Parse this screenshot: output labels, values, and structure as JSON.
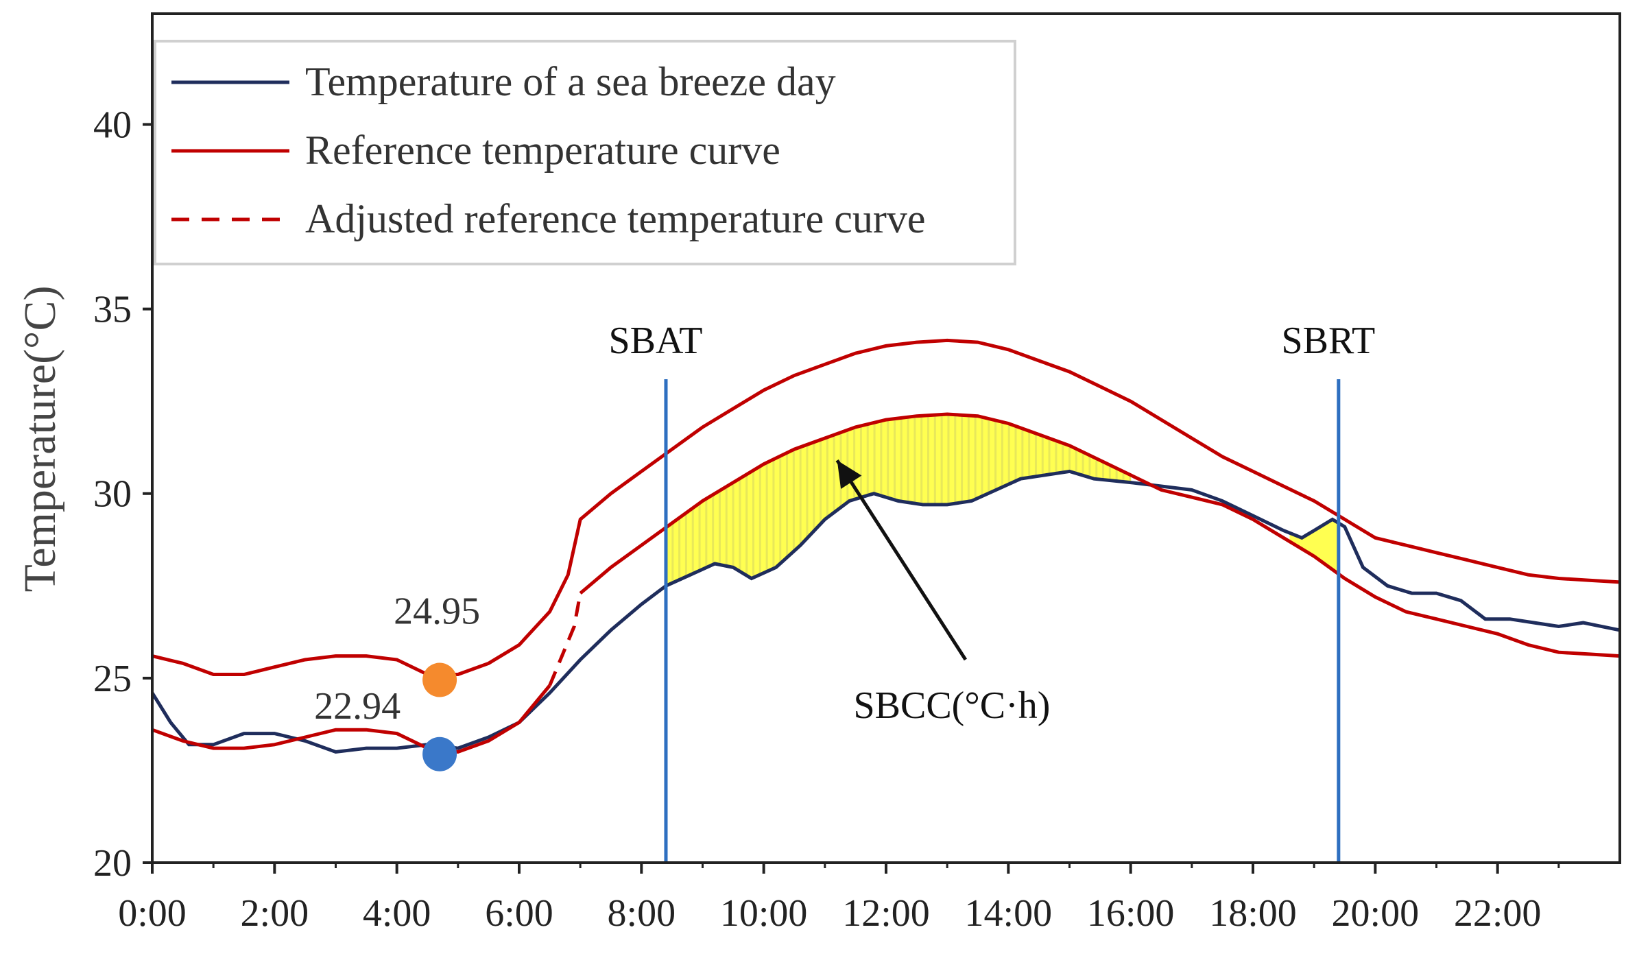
{
  "chart_data": {
    "type": "line",
    "title": "",
    "xlabel": "",
    "ylabel": "Temperature(°C)",
    "xlim": [
      0,
      24
    ],
    "ylim": [
      20,
      43
    ],
    "x_ticks": [
      "0:00",
      "2:00",
      "4:00",
      "6:00",
      "8:00",
      "10:00",
      "12:00",
      "14:00",
      "16:00",
      "18:00",
      "20:00",
      "22:00"
    ],
    "y_ticks": [
      "20",
      "25",
      "30",
      "35",
      "40"
    ],
    "legend": [
      {
        "label": "Temperature of a sea breeze day",
        "color": "#1f2d5c",
        "style": "solid"
      },
      {
        "label": "Reference temperature curve",
        "color": "#c00000",
        "style": "solid"
      },
      {
        "label": "Adjusted reference temperature curve",
        "color": "#c00000",
        "style": "dashed"
      }
    ],
    "series": [
      {
        "name": "Temperature of a sea breeze day",
        "color": "#1f2d5c",
        "points": [
          [
            0,
            24.6
          ],
          [
            0.3,
            23.8
          ],
          [
            0.6,
            23.2
          ],
          [
            1.0,
            23.2
          ],
          [
            1.5,
            23.5
          ],
          [
            2.0,
            23.5
          ],
          [
            2.5,
            23.3
          ],
          [
            3.0,
            23.0
          ],
          [
            3.5,
            23.1
          ],
          [
            4.0,
            23.1
          ],
          [
            4.5,
            23.2
          ],
          [
            5.0,
            23.1
          ],
          [
            5.5,
            23.4
          ],
          [
            6.0,
            23.8
          ],
          [
            6.5,
            24.6
          ],
          [
            7.0,
            25.5
          ],
          [
            7.5,
            26.3
          ],
          [
            8.0,
            27.0
          ],
          [
            8.4,
            27.5
          ],
          [
            8.8,
            27.8
          ],
          [
            9.2,
            28.1
          ],
          [
            9.5,
            28.0
          ],
          [
            9.8,
            27.7
          ],
          [
            10.2,
            28.0
          ],
          [
            10.6,
            28.6
          ],
          [
            11.0,
            29.3
          ],
          [
            11.4,
            29.8
          ],
          [
            11.8,
            30.0
          ],
          [
            12.2,
            29.8
          ],
          [
            12.6,
            29.7
          ],
          [
            13.0,
            29.7
          ],
          [
            13.4,
            29.8
          ],
          [
            13.8,
            30.1
          ],
          [
            14.2,
            30.4
          ],
          [
            14.6,
            30.5
          ],
          [
            15.0,
            30.6
          ],
          [
            15.4,
            30.4
          ],
          [
            16.0,
            30.3
          ],
          [
            16.5,
            30.2
          ],
          [
            17.0,
            30.1
          ],
          [
            17.5,
            29.8
          ],
          [
            18.0,
            29.4
          ],
          [
            18.5,
            29.0
          ],
          [
            18.8,
            28.8
          ],
          [
            19.0,
            29.0
          ],
          [
            19.3,
            29.3
          ],
          [
            19.5,
            29.1
          ],
          [
            19.8,
            28.0
          ],
          [
            20.2,
            27.5
          ],
          [
            20.6,
            27.3
          ],
          [
            21.0,
            27.3
          ],
          [
            21.4,
            27.1
          ],
          [
            21.8,
            26.6
          ],
          [
            22.2,
            26.6
          ],
          [
            22.6,
            26.5
          ],
          [
            23.0,
            26.4
          ],
          [
            23.4,
            26.5
          ],
          [
            24,
            26.3
          ]
        ]
      },
      {
        "name": "Reference temperature curve (upper)",
        "color": "#c00000",
        "points": [
          [
            0,
            25.6
          ],
          [
            0.5,
            25.4
          ],
          [
            1.0,
            25.1
          ],
          [
            1.5,
            25.1
          ],
          [
            2.0,
            25.3
          ],
          [
            2.5,
            25.5
          ],
          [
            3.0,
            25.6
          ],
          [
            3.5,
            25.6
          ],
          [
            4.0,
            25.5
          ],
          [
            4.5,
            25.1
          ],
          [
            5.0,
            25.1
          ],
          [
            5.5,
            25.4
          ],
          [
            6.0,
            25.9
          ],
          [
            6.5,
            26.8
          ],
          [
            6.8,
            27.8
          ],
          [
            7.0,
            29.3
          ],
          [
            7.5,
            30.0
          ],
          [
            8.0,
            30.6
          ],
          [
            8.5,
            31.2
          ],
          [
            9.0,
            31.8
          ],
          [
            9.5,
            32.3
          ],
          [
            10.0,
            32.8
          ],
          [
            10.5,
            33.2
          ],
          [
            11.0,
            33.5
          ],
          [
            11.5,
            33.8
          ],
          [
            12.0,
            34.0
          ],
          [
            12.5,
            34.1
          ],
          [
            13.0,
            34.15
          ],
          [
            13.5,
            34.1
          ],
          [
            14.0,
            33.9
          ],
          [
            14.5,
            33.6
          ],
          [
            15.0,
            33.3
          ],
          [
            15.5,
            32.9
          ],
          [
            16.0,
            32.5
          ],
          [
            16.5,
            32.0
          ],
          [
            17.0,
            31.5
          ],
          [
            17.5,
            31.0
          ],
          [
            18.0,
            30.6
          ],
          [
            18.5,
            30.2
          ],
          [
            19.0,
            29.8
          ],
          [
            19.5,
            29.3
          ],
          [
            20.0,
            28.8
          ],
          [
            20.5,
            28.6
          ],
          [
            21.0,
            28.4
          ],
          [
            21.5,
            28.2
          ],
          [
            22.0,
            28.0
          ],
          [
            22.5,
            27.8
          ],
          [
            23.0,
            27.7
          ],
          [
            23.5,
            27.65
          ],
          [
            24,
            27.6
          ]
        ]
      },
      {
        "name": "Reference temperature curve (lower)",
        "color": "#c00000",
        "points": [
          [
            0,
            23.6
          ],
          [
            0.5,
            23.3
          ],
          [
            1.0,
            23.1
          ],
          [
            1.5,
            23.1
          ],
          [
            2.0,
            23.2
          ],
          [
            2.5,
            23.4
          ],
          [
            3.0,
            23.6
          ],
          [
            3.5,
            23.6
          ],
          [
            4.0,
            23.5
          ],
          [
            4.5,
            23.1
          ],
          [
            5.0,
            23.0
          ],
          [
            5.5,
            23.3
          ],
          [
            6.0,
            23.8
          ],
          [
            6.5,
            24.8
          ],
          [
            6.9,
            26.4
          ],
          [
            7.0,
            27.3
          ],
          [
            7.5,
            28.0
          ],
          [
            8.0,
            28.6
          ],
          [
            8.5,
            29.2
          ],
          [
            9.0,
            29.8
          ],
          [
            9.5,
            30.3
          ],
          [
            10.0,
            30.8
          ],
          [
            10.5,
            31.2
          ],
          [
            11.0,
            31.5
          ],
          [
            11.5,
            31.8
          ],
          [
            12.0,
            32.0
          ],
          [
            12.5,
            32.1
          ],
          [
            13.0,
            32.15
          ],
          [
            13.5,
            32.1
          ],
          [
            14.0,
            31.9
          ],
          [
            14.5,
            31.6
          ],
          [
            15.0,
            31.3
          ],
          [
            15.5,
            30.9
          ],
          [
            16.0,
            30.5
          ],
          [
            16.5,
            30.1
          ],
          [
            17.0,
            29.9
          ],
          [
            17.5,
            29.7
          ],
          [
            18.0,
            29.3
          ],
          [
            18.5,
            28.8
          ],
          [
            19.0,
            28.3
          ],
          [
            19.5,
            27.7
          ],
          [
            20.0,
            27.2
          ],
          [
            20.5,
            26.8
          ],
          [
            21.0,
            26.6
          ],
          [
            21.5,
            26.4
          ],
          [
            22.0,
            26.2
          ],
          [
            22.5,
            25.9
          ],
          [
            23.0,
            25.7
          ],
          [
            23.5,
            25.65
          ],
          [
            24,
            25.6
          ]
        ]
      }
    ],
    "dashed_segment": [
      [
        6.5,
        24.8
      ],
      [
        6.9,
        26.4
      ],
      [
        7.0,
        27.3
      ]
    ],
    "shaded_regions": [
      {
        "name": "SBCC area",
        "color": "#ffff33",
        "x_start": 8.4,
        "x_end": 16.0
      },
      {
        "name": "late area",
        "color": "#ffff33",
        "x_start": 18.6,
        "x_end": 19.4
      }
    ],
    "vertical_lines": [
      {
        "label": "SBAT",
        "x": 8.4,
        "color": "#2e6fc0"
      },
      {
        "label": "SBRT",
        "x": 19.4,
        "color": "#2e6fc0"
      }
    ],
    "markers": [
      {
        "label": "24.95",
        "x": 4.7,
        "y": 24.95,
        "color": "#f58a2d"
      },
      {
        "label": "22.94",
        "x": 4.7,
        "y": 22.94,
        "color": "#3a78c9"
      }
    ],
    "annotation": {
      "text": "SBCC(°C·h)",
      "arrow_from": [
        13.3,
        25.5
      ],
      "arrow_to": [
        11.2,
        30.9
      ]
    }
  }
}
